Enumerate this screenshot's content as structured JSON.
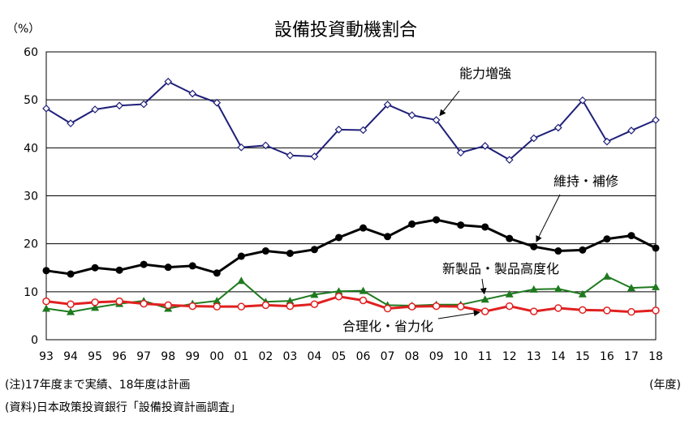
{
  "chart_data": {
    "type": "line",
    "title": "設備投資動機割合",
    "y_unit": "（%）",
    "x_unit": "(年度)",
    "ylim": [
      0,
      60
    ],
    "yticks": [
      0,
      10,
      20,
      30,
      40,
      50,
      60
    ],
    "grid": "horizontal",
    "categories": [
      "93",
      "94",
      "95",
      "96",
      "97",
      "98",
      "99",
      "00",
      "01",
      "02",
      "03",
      "04",
      "05",
      "06",
      "07",
      "08",
      "09",
      "10",
      "11",
      "12",
      "13",
      "14",
      "15",
      "16",
      "17",
      "18"
    ],
    "series": [
      {
        "name": "能力増強",
        "color": "#1f1f7a",
        "marker": "diamond-open",
        "values": [
          48.2,
          45.1,
          48.0,
          48.8,
          49.1,
          53.8,
          51.3,
          49.4,
          40.1,
          40.5,
          38.4,
          38.2,
          43.8,
          43.7,
          49.0,
          46.8,
          45.8,
          39.0,
          40.4,
          37.5,
          42.0,
          44.2,
          49.9,
          41.3,
          43.6,
          45.8
        ]
      },
      {
        "name": "維持・補修",
        "color": "#000000",
        "marker": "circle-filled",
        "values": [
          14.4,
          13.7,
          15.0,
          14.5,
          15.7,
          15.1,
          15.4,
          13.9,
          17.4,
          18.5,
          18.0,
          18.8,
          21.3,
          23.3,
          21.5,
          24.1,
          25.0,
          23.9,
          23.5,
          21.1,
          19.4,
          18.5,
          18.7,
          21.0,
          21.7,
          19.1
        ]
      },
      {
        "name": "新製品・製品高度化",
        "color": "#1e7a1e",
        "marker": "triangle-filled",
        "values": [
          6.5,
          5.8,
          6.7,
          7.5,
          8.1,
          6.5,
          7.5,
          8.1,
          12.3,
          7.9,
          8.1,
          9.4,
          10.1,
          10.2,
          7.2,
          7.1,
          7.3,
          7.3,
          8.4,
          9.5,
          10.5,
          10.6,
          9.5,
          13.2,
          10.8,
          11.0
        ]
      },
      {
        "name": "合理化・省力化",
        "color": "#e02020",
        "marker": "circle-open",
        "values": [
          8.0,
          7.4,
          7.8,
          8.0,
          7.5,
          7.2,
          7.0,
          6.9,
          6.9,
          7.2,
          7.0,
          7.4,
          9.0,
          8.2,
          6.5,
          6.9,
          7.0,
          6.9,
          5.9,
          7.0,
          5.9,
          6.6,
          6.2,
          6.1,
          5.8,
          6.1
        ]
      }
    ],
    "annotations": [
      {
        "series": 0,
        "text": "能力増強"
      },
      {
        "series": 1,
        "text": "維持・補修"
      },
      {
        "series": 2,
        "text": "新製品・製品高度化"
      },
      {
        "series": 3,
        "text": "合理化・省力化"
      }
    ]
  },
  "notes": {
    "note1": "(注)17年度まで実績、18年度は計画",
    "note2": "(資料)日本政策投資銀行「設備投資計画調査」"
  }
}
